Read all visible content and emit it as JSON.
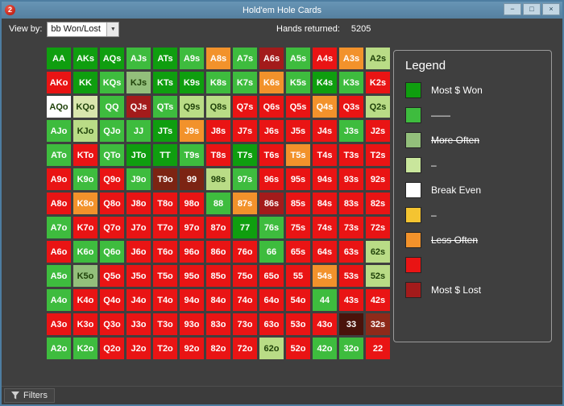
{
  "window": {
    "title": "Hold'em Hole Cards",
    "app_icon_glyph": "2",
    "controls": {
      "minimize": "−",
      "maximize": "□",
      "close": "×"
    }
  },
  "toolbar": {
    "view_by_label": "View by:",
    "view_by_value": "bb Won/Lost",
    "hands_returned_label": "Hands returned:",
    "hands_returned_value": "5205"
  },
  "statusbar": {
    "filters_label": "Filters"
  },
  "legend": {
    "title": "Legend",
    "items": [
      {
        "color": "#0f9e0f",
        "label": "Most $ Won",
        "strike": false
      },
      {
        "color": "#3ebc3e",
        "label": "——",
        "strike": false
      },
      {
        "color": "#93bf7b",
        "label": "More Often",
        "strike": true
      },
      {
        "color": "#c9e69c",
        "label": "–",
        "strike": false
      },
      {
        "color": "#ffffff",
        "label": "Break Even",
        "strike": false
      },
      {
        "color": "#f4c431",
        "label": "–",
        "strike": false
      },
      {
        "color": "#f2922b",
        "label": "Less Often",
        "strike": true
      },
      {
        "color": "#e91414",
        "label": "",
        "strike": false
      },
      {
        "color": "#a31b1b",
        "label": "Most $ Lost",
        "strike": false
      }
    ]
  },
  "palette": {
    "dg": "#0f9e0f",
    "g": "#3ebc3e",
    "mg": "#93bf7b",
    "lg": "#b9dc86",
    "xl": "#d9e6ad",
    "w": "#ffffff",
    "y": "#f4c431",
    "o": "#f2922b",
    "r": "#e91414",
    "dr": "#a31b1b",
    "br": "#7c2413",
    "mr": "#8e2a1a",
    "xd": "#4a130b"
  },
  "dark_text_colors": [
    "mg",
    "lg",
    "xl",
    "w",
    "y"
  ],
  "grid": {
    "rows": [
      [
        {
          "h": "AA",
          "c": "dg"
        },
        {
          "h": "AKs",
          "c": "dg"
        },
        {
          "h": "AQs",
          "c": "dg"
        },
        {
          "h": "AJs",
          "c": "g"
        },
        {
          "h": "ATs",
          "c": "dg"
        },
        {
          "h": "A9s",
          "c": "g"
        },
        {
          "h": "A8s",
          "c": "o"
        },
        {
          "h": "A7s",
          "c": "g"
        },
        {
          "h": "A6s",
          "c": "dr"
        },
        {
          "h": "A5s",
          "c": "g"
        },
        {
          "h": "A4s",
          "c": "r"
        },
        {
          "h": "A3s",
          "c": "o"
        },
        {
          "h": "A2s",
          "c": "lg"
        }
      ],
      [
        {
          "h": "AKo",
          "c": "r"
        },
        {
          "h": "KK",
          "c": "dg"
        },
        {
          "h": "KQs",
          "c": "g"
        },
        {
          "h": "KJs",
          "c": "mg"
        },
        {
          "h": "KTs",
          "c": "dg"
        },
        {
          "h": "K9s",
          "c": "dg"
        },
        {
          "h": "K8s",
          "c": "g"
        },
        {
          "h": "K7s",
          "c": "g"
        },
        {
          "h": "K6s",
          "c": "o"
        },
        {
          "h": "K5s",
          "c": "g"
        },
        {
          "h": "K4s",
          "c": "dg"
        },
        {
          "h": "K3s",
          "c": "g"
        },
        {
          "h": "K2s",
          "c": "r"
        }
      ],
      [
        {
          "h": "AQo",
          "c": "w"
        },
        {
          "h": "KQo",
          "c": "xl"
        },
        {
          "h": "QQ",
          "c": "g"
        },
        {
          "h": "QJs",
          "c": "dr"
        },
        {
          "h": "QTs",
          "c": "g"
        },
        {
          "h": "Q9s",
          "c": "lg"
        },
        {
          "h": "Q8s",
          "c": "lg"
        },
        {
          "h": "Q7s",
          "c": "r"
        },
        {
          "h": "Q6s",
          "c": "r"
        },
        {
          "h": "Q5s",
          "c": "r"
        },
        {
          "h": "Q4s",
          "c": "o"
        },
        {
          "h": "Q3s",
          "c": "r"
        },
        {
          "h": "Q2s",
          "c": "lg"
        }
      ],
      [
        {
          "h": "AJo",
          "c": "g"
        },
        {
          "h": "KJo",
          "c": "lg"
        },
        {
          "h": "QJo",
          "c": "g"
        },
        {
          "h": "JJ",
          "c": "g"
        },
        {
          "h": "JTs",
          "c": "dg"
        },
        {
          "h": "J9s",
          "c": "o"
        },
        {
          "h": "J8s",
          "c": "r"
        },
        {
          "h": "J7s",
          "c": "r"
        },
        {
          "h": "J6s",
          "c": "r"
        },
        {
          "h": "J5s",
          "c": "r"
        },
        {
          "h": "J4s",
          "c": "r"
        },
        {
          "h": "J3s",
          "c": "g"
        },
        {
          "h": "J2s",
          "c": "r"
        }
      ],
      [
        {
          "h": "ATo",
          "c": "g"
        },
        {
          "h": "KTo",
          "c": "r"
        },
        {
          "h": "QTo",
          "c": "g"
        },
        {
          "h": "JTo",
          "c": "dg"
        },
        {
          "h": "TT",
          "c": "dg"
        },
        {
          "h": "T9s",
          "c": "g"
        },
        {
          "h": "T8s",
          "c": "r"
        },
        {
          "h": "T7s",
          "c": "dg"
        },
        {
          "h": "T6s",
          "c": "r"
        },
        {
          "h": "T5s",
          "c": "o"
        },
        {
          "h": "T4s",
          "c": "r"
        },
        {
          "h": "T3s",
          "c": "r"
        },
        {
          "h": "T2s",
          "c": "r"
        }
      ],
      [
        {
          "h": "A9o",
          "c": "r"
        },
        {
          "h": "K9o",
          "c": "g"
        },
        {
          "h": "Q9o",
          "c": "r"
        },
        {
          "h": "J9o",
          "c": "g"
        },
        {
          "h": "T9o",
          "c": "br"
        },
        {
          "h": "99",
          "c": "br"
        },
        {
          "h": "98s",
          "c": "lg"
        },
        {
          "h": "97s",
          "c": "g"
        },
        {
          "h": "96s",
          "c": "r"
        },
        {
          "h": "95s",
          "c": "r"
        },
        {
          "h": "94s",
          "c": "r"
        },
        {
          "h": "93s",
          "c": "r"
        },
        {
          "h": "92s",
          "c": "r"
        }
      ],
      [
        {
          "h": "A8o",
          "c": "r"
        },
        {
          "h": "K8o",
          "c": "o"
        },
        {
          "h": "Q8o",
          "c": "r"
        },
        {
          "h": "J8o",
          "c": "r"
        },
        {
          "h": "T8o",
          "c": "r"
        },
        {
          "h": "98o",
          "c": "r"
        },
        {
          "h": "88",
          "c": "g"
        },
        {
          "h": "87s",
          "c": "o"
        },
        {
          "h": "86s",
          "c": "dr"
        },
        {
          "h": "85s",
          "c": "r"
        },
        {
          "h": "84s",
          "c": "r"
        },
        {
          "h": "83s",
          "c": "r"
        },
        {
          "h": "82s",
          "c": "r"
        }
      ],
      [
        {
          "h": "A7o",
          "c": "g"
        },
        {
          "h": "K7o",
          "c": "r"
        },
        {
          "h": "Q7o",
          "c": "r"
        },
        {
          "h": "J7o",
          "c": "r"
        },
        {
          "h": "T7o",
          "c": "r"
        },
        {
          "h": "97o",
          "c": "r"
        },
        {
          "h": "87o",
          "c": "r"
        },
        {
          "h": "77",
          "c": "dg"
        },
        {
          "h": "76s",
          "c": "g"
        },
        {
          "h": "75s",
          "c": "r"
        },
        {
          "h": "74s",
          "c": "r"
        },
        {
          "h": "73s",
          "c": "r"
        },
        {
          "h": "72s",
          "c": "r"
        }
      ],
      [
        {
          "h": "A6o",
          "c": "r"
        },
        {
          "h": "K6o",
          "c": "g"
        },
        {
          "h": "Q6o",
          "c": "g"
        },
        {
          "h": "J6o",
          "c": "r"
        },
        {
          "h": "T6o",
          "c": "r"
        },
        {
          "h": "96o",
          "c": "r"
        },
        {
          "h": "86o",
          "c": "r"
        },
        {
          "h": "76o",
          "c": "r"
        },
        {
          "h": "66",
          "c": "g"
        },
        {
          "h": "65s",
          "c": "r"
        },
        {
          "h": "64s",
          "c": "r"
        },
        {
          "h": "63s",
          "c": "r"
        },
        {
          "h": "62s",
          "c": "lg"
        }
      ],
      [
        {
          "h": "A5o",
          "c": "g"
        },
        {
          "h": "K5o",
          "c": "mg"
        },
        {
          "h": "Q5o",
          "c": "r"
        },
        {
          "h": "J5o",
          "c": "r"
        },
        {
          "h": "T5o",
          "c": "r"
        },
        {
          "h": "95o",
          "c": "r"
        },
        {
          "h": "85o",
          "c": "r"
        },
        {
          "h": "75o",
          "c": "r"
        },
        {
          "h": "65o",
          "c": "r"
        },
        {
          "h": "55",
          "c": "r"
        },
        {
          "h": "54s",
          "c": "o"
        },
        {
          "h": "53s",
          "c": "r"
        },
        {
          "h": "52s",
          "c": "lg"
        }
      ],
      [
        {
          "h": "A4o",
          "c": "g"
        },
        {
          "h": "K4o",
          "c": "r"
        },
        {
          "h": "Q4o",
          "c": "r"
        },
        {
          "h": "J4o",
          "c": "r"
        },
        {
          "h": "T4o",
          "c": "r"
        },
        {
          "h": "94o",
          "c": "r"
        },
        {
          "h": "84o",
          "c": "r"
        },
        {
          "h": "74o",
          "c": "r"
        },
        {
          "h": "64o",
          "c": "r"
        },
        {
          "h": "54o",
          "c": "r"
        },
        {
          "h": "44",
          "c": "g"
        },
        {
          "h": "43s",
          "c": "r"
        },
        {
          "h": "42s",
          "c": "r"
        }
      ],
      [
        {
          "h": "A3o",
          "c": "r"
        },
        {
          "h": "K3o",
          "c": "r"
        },
        {
          "h": "Q3o",
          "c": "r"
        },
        {
          "h": "J3o",
          "c": "r"
        },
        {
          "h": "T3o",
          "c": "r"
        },
        {
          "h": "93o",
          "c": "r"
        },
        {
          "h": "83o",
          "c": "r"
        },
        {
          "h": "73o",
          "c": "r"
        },
        {
          "h": "63o",
          "c": "r"
        },
        {
          "h": "53o",
          "c": "r"
        },
        {
          "h": "43o",
          "c": "r"
        },
        {
          "h": "33",
          "c": "xd"
        },
        {
          "h": "32s",
          "c": "mr"
        }
      ],
      [
        {
          "h": "A2o",
          "c": "g"
        },
        {
          "h": "K2o",
          "c": "g"
        },
        {
          "h": "Q2o",
          "c": "r"
        },
        {
          "h": "J2o",
          "c": "r"
        },
        {
          "h": "T2o",
          "c": "r"
        },
        {
          "h": "92o",
          "c": "r"
        },
        {
          "h": "82o",
          "c": "r"
        },
        {
          "h": "72o",
          "c": "r"
        },
        {
          "h": "62o",
          "c": "lg"
        },
        {
          "h": "52o",
          "c": "r"
        },
        {
          "h": "42o",
          "c": "g"
        },
        {
          "h": "32o",
          "c": "g"
        },
        {
          "h": "22",
          "c": "r"
        }
      ]
    ]
  }
}
